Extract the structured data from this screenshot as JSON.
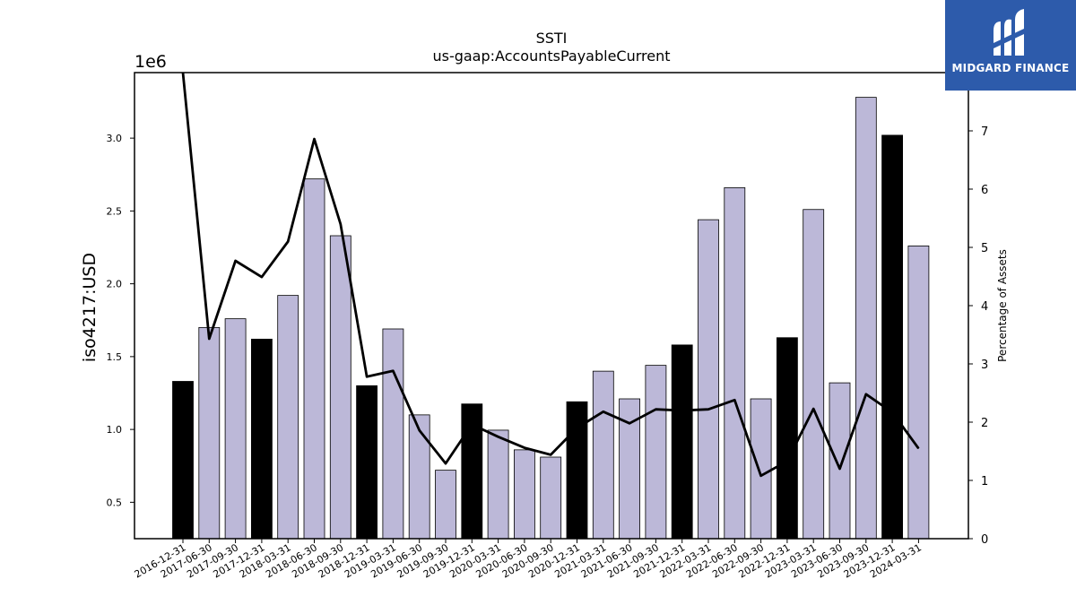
{
  "chart_data": {
    "type": "bar",
    "title": "SSTI",
    "subtitle": "us-gaap:AccountsPayableCurrent",
    "ylabel": "iso4217:USD",
    "y2label": "Percentage of Assets",
    "y_offset_label": "1e6",
    "ylim": [
      250000,
      3450000
    ],
    "y2lim": [
      0,
      8.0
    ],
    "yticks": [
      "0.5",
      "1.0",
      "1.5",
      "2.0",
      "2.5",
      "3.0"
    ],
    "y2ticks": [
      "0",
      "1",
      "2",
      "3",
      "4",
      "5",
      "6",
      "7"
    ],
    "categories": [
      "2016-12-31",
      "2017-06-30",
      "2017-09-30",
      "2017-12-31",
      "2018-03-31",
      "2018-06-30",
      "2018-09-30",
      "2018-12-31",
      "2019-03-31",
      "2019-06-30",
      "2019-09-30",
      "2019-12-31",
      "2020-03-31",
      "2020-06-30",
      "2020-09-30",
      "2020-12-31",
      "2021-03-31",
      "2021-06-30",
      "2021-09-30",
      "2021-12-31",
      "2022-03-31",
      "2022-06-30",
      "2022-09-30",
      "2022-12-31",
      "2023-03-31",
      "2023-06-30",
      "2023-09-30",
      "2023-12-31",
      "2024-03-31"
    ],
    "series": [
      {
        "kind": "bar",
        "values": [
          1330000,
          1700000,
          1760000,
          1620000,
          1920000,
          2720000,
          2330000,
          1300000,
          1690000,
          1100000,
          720000,
          1175000,
          995000,
          860000,
          810000,
          1190000,
          1400000,
          1210000,
          1440000,
          1580000,
          2440000,
          2660000,
          1210000,
          1630000,
          2510000,
          1320000,
          3280000,
          3020000,
          2260000
        ],
        "highlight": [
          true,
          false,
          false,
          true,
          false,
          false,
          false,
          true,
          false,
          false,
          false,
          true,
          false,
          false,
          false,
          true,
          false,
          false,
          false,
          true,
          false,
          false,
          false,
          true,
          false,
          false,
          false,
          true,
          false
        ]
      },
      {
        "kind": "line",
        "axis": "right",
        "values": [
          8.0,
          3.43,
          4.77,
          4.49,
          5.1,
          6.86,
          5.4,
          2.78,
          2.88,
          1.86,
          1.29,
          1.96,
          1.75,
          1.56,
          1.44,
          1.9,
          2.18,
          1.98,
          2.22,
          2.2,
          2.22,
          2.38,
          1.08,
          1.33,
          2.23,
          1.2,
          2.48,
          2.17,
          1.55
        ]
      }
    ],
    "colors": {
      "bar": "#bcb8d8",
      "highlight_bar": "#000000",
      "line": "#000000"
    }
  },
  "logo": {
    "text": "MIDGARD FINANCE"
  }
}
